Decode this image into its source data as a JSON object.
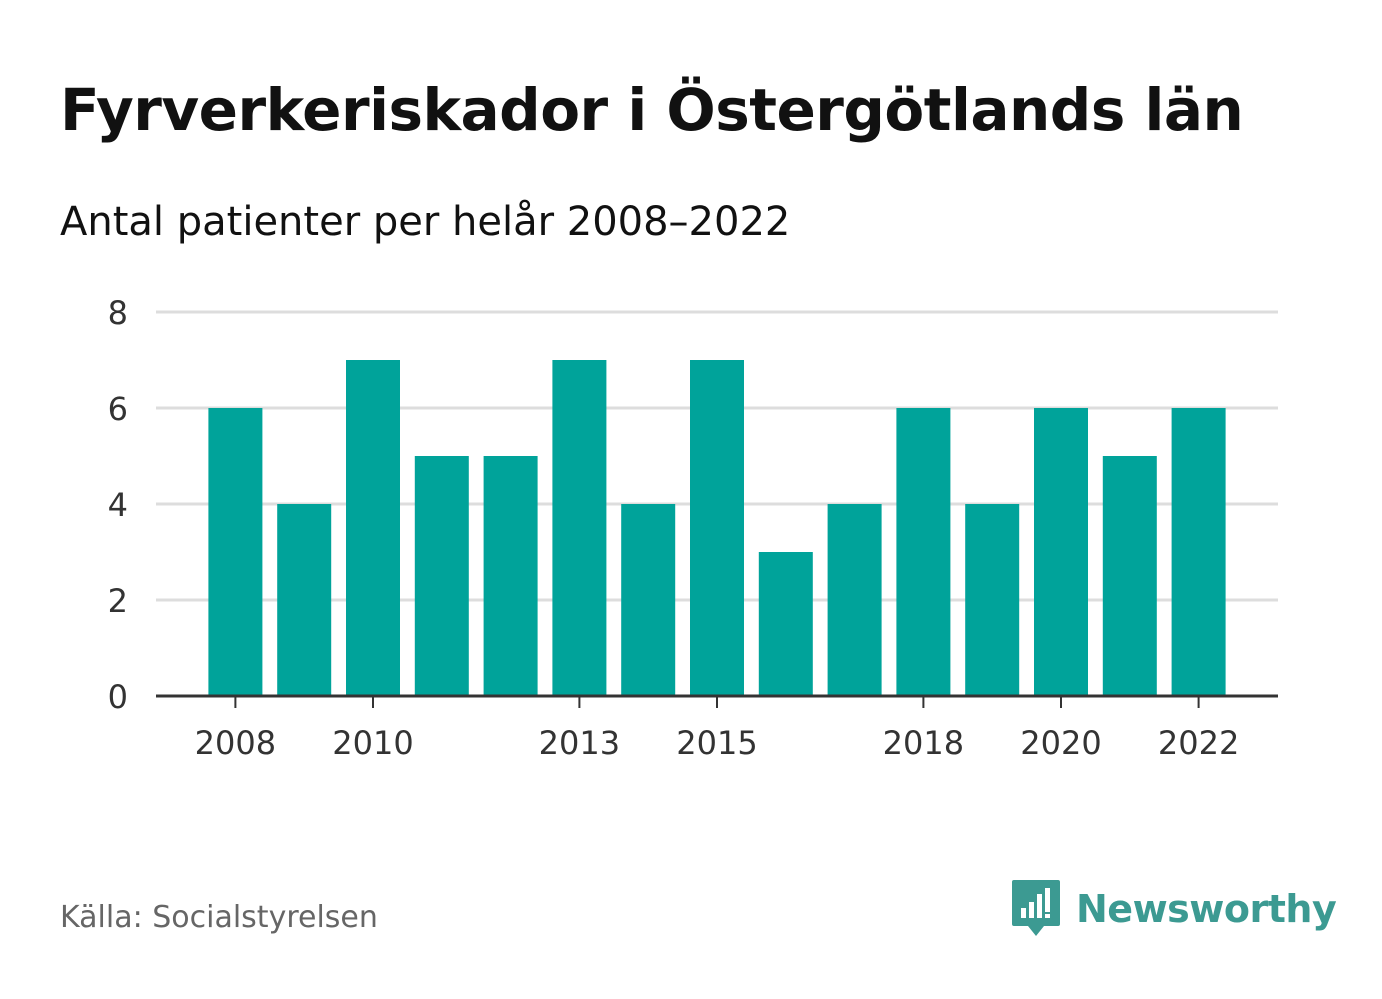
{
  "header": {
    "title": "Fyrverkeriskador i Östergötlands län",
    "subtitle": "Antal patienter per helår 2008–2022"
  },
  "footer": {
    "source": "Källa: Socialstyrelsen",
    "brand": "Newsworthy",
    "brand_icon": "speech-bubble-bar-chart-icon"
  },
  "colors": {
    "bar": "#00a39a",
    "grid": "#dddddd",
    "axis": "#333333",
    "brand": "#3c9a92"
  },
  "chart_data": {
    "type": "bar",
    "title": "Fyrverkeriskador i Östergötlands län",
    "subtitle": "Antal patienter per helår 2008–2022",
    "categories": [
      "2008",
      "2009",
      "2010",
      "2011",
      "2012",
      "2013",
      "2014",
      "2015",
      "2016",
      "2017",
      "2018",
      "2019",
      "2020",
      "2021",
      "2022"
    ],
    "values": [
      6,
      4,
      7,
      5,
      5,
      7,
      4,
      7,
      3,
      4,
      6,
      4,
      6,
      5,
      6
    ],
    "x_tick_labels": [
      "2008",
      "2010",
      "2013",
      "2015",
      "2018",
      "2020",
      "2022"
    ],
    "y_ticks": [
      0,
      2,
      4,
      6,
      8
    ],
    "ylim": [
      0,
      8
    ],
    "xlabel": "",
    "ylabel": "",
    "grid": true
  }
}
